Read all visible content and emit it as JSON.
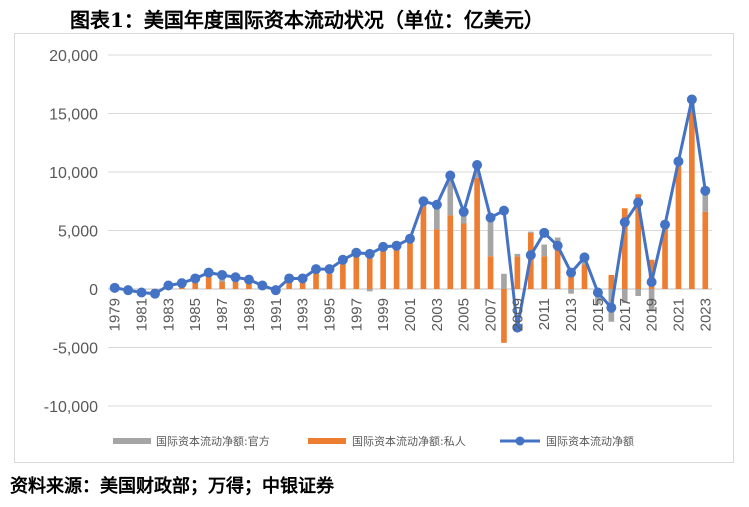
{
  "title": "图表1：美国年度国际资本流动状况（单位：亿美元）",
  "source": "资料来源：美国财政部；万得；中银证券",
  "chart_data": {
    "type": "bar",
    "stacked": true,
    "y_ticks": [
      "20,000",
      "15,000",
      "10,000",
      "5,000",
      "0",
      "-5,000",
      "-10,000"
    ],
    "y_tick_values": [
      20000,
      15000,
      10000,
      5000,
      0,
      -5000,
      -10000
    ],
    "ylim": [
      -10000,
      20000
    ],
    "grid": true,
    "legend_position": "bottom",
    "years": [
      1979,
      1980,
      1981,
      1982,
      1983,
      1984,
      1985,
      1986,
      1987,
      1988,
      1989,
      1990,
      1991,
      1992,
      1993,
      1994,
      1995,
      1996,
      1997,
      1998,
      1999,
      2000,
      2001,
      2002,
      2003,
      2004,
      2005,
      2006,
      2007,
      2008,
      2009,
      2010,
      2011,
      2012,
      2013,
      2014,
      2015,
      2016,
      2017,
      2018,
      2019,
      2020,
      2021,
      2022,
      2023
    ],
    "x_tick_labels": [
      "1979",
      "1981",
      "1983",
      "1985",
      "1987",
      "1989",
      "1991",
      "1993",
      "1995",
      "1997",
      "1999",
      "2001",
      "2003",
      "2005",
      "2007",
      "2009",
      "2011",
      "2013",
      "2015",
      "2017",
      "2019",
      "2021",
      "2023"
    ],
    "series": [
      {
        "name": "国际资本流动净额:官方",
        "type": "bar",
        "color": "#a5a5a5",
        "values": [
          0,
          -100,
          -200,
          -300,
          100,
          100,
          0,
          300,
          600,
          400,
          300,
          0,
          0,
          100,
          200,
          200,
          300,
          300,
          300,
          -200,
          100,
          50,
          100,
          300,
          2000,
          3400,
          1000,
          800,
          3200,
          1300,
          200,
          100,
          1000,
          800,
          -400,
          600,
          -1200,
          -2800,
          -1200,
          -600,
          -1900,
          300,
          200,
          800,
          1800
        ]
      },
      {
        "name": "国际资本流动净额:私人",
        "type": "bar",
        "color": "#ed7d31",
        "values": [
          100,
          -20,
          -130,
          -200,
          200,
          400,
          900,
          1100,
          600,
          600,
          600,
          300,
          -100,
          800,
          800,
          1500,
          1300,
          2300,
          2800,
          3200,
          3500,
          3600,
          4200,
          7200,
          5100,
          6300,
          5600,
          9500,
          2800,
          -4600,
          2800,
          4800,
          2800,
          3600,
          1800,
          2100,
          -100,
          1200,
          6900,
          8100,
          2500,
          5300,
          10700,
          15300,
          6600
        ]
      },
      {
        "name": "国际资本流动净额",
        "type": "line",
        "color": "#4472c4",
        "values": [
          100,
          -100,
          -300,
          -400,
          300,
          500,
          900,
          1400,
          1200,
          1000,
          800,
          300,
          -100,
          900,
          900,
          1700,
          1700,
          2500,
          3100,
          3000,
          3600,
          3700,
          4300,
          7500,
          7200,
          9700,
          6600,
          10600,
          6100,
          6700,
          -3300,
          2900,
          4800,
          3700,
          1400,
          2700,
          -300,
          -1600,
          5700,
          7400,
          600,
          5500,
          10900,
          16200,
          8400
        ]
      }
    ]
  }
}
